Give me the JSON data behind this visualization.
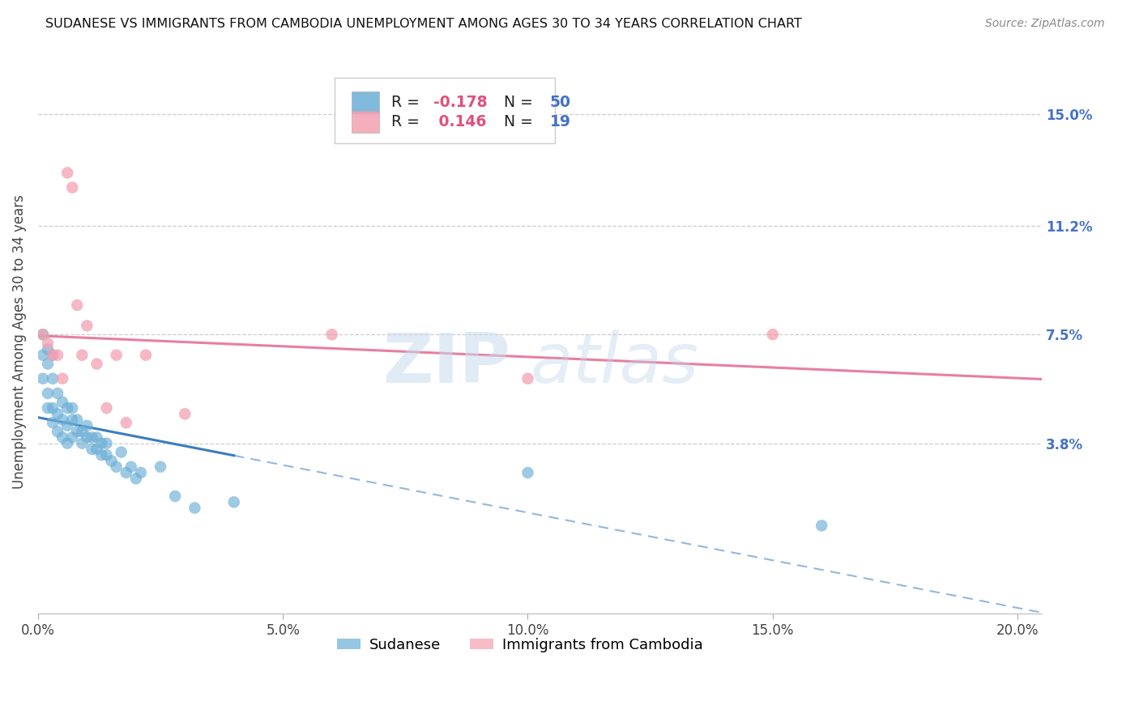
{
  "title": "SUDANESE VS IMMIGRANTS FROM CAMBODIA UNEMPLOYMENT AMONG AGES 30 TO 34 YEARS CORRELATION CHART",
  "source": "Source: ZipAtlas.com",
  "ylabel": "Unemployment Among Ages 30 to 34 years",
  "xlabel_ticks": [
    "0.0%",
    "5.0%",
    "10.0%",
    "15.0%",
    "20.0%"
  ],
  "xlabel_vals": [
    0.0,
    0.05,
    0.1,
    0.15,
    0.2
  ],
  "ylabel_ticks_labels": [
    "15.0%",
    "11.2%",
    "7.5%",
    "3.8%"
  ],
  "ylabel_ticks_vals": [
    0.15,
    0.112,
    0.075,
    0.038
  ],
  "xlim": [
    0.0,
    0.205
  ],
  "ylim": [
    -0.02,
    0.165
  ],
  "sudanese_R": -0.178,
  "sudanese_N": 50,
  "cambodia_R": 0.146,
  "cambodia_N": 19,
  "sudanese_color": "#6aaed6",
  "cambodia_color": "#f4a0b0",
  "sudanese_line_color": "#3a7dbf",
  "cambodia_line_color": "#e87fa0",
  "sudanese_x": [
    0.001,
    0.001,
    0.001,
    0.002,
    0.002,
    0.002,
    0.002,
    0.003,
    0.003,
    0.003,
    0.003,
    0.004,
    0.004,
    0.004,
    0.005,
    0.005,
    0.005,
    0.006,
    0.006,
    0.006,
    0.007,
    0.007,
    0.007,
    0.008,
    0.008,
    0.009,
    0.009,
    0.01,
    0.01,
    0.011,
    0.011,
    0.012,
    0.012,
    0.013,
    0.013,
    0.014,
    0.014,
    0.015,
    0.016,
    0.017,
    0.018,
    0.019,
    0.02,
    0.021,
    0.025,
    0.028,
    0.032,
    0.04,
    0.1,
    0.16
  ],
  "sudanese_y": [
    0.075,
    0.068,
    0.06,
    0.07,
    0.065,
    0.055,
    0.05,
    0.068,
    0.06,
    0.05,
    0.045,
    0.055,
    0.048,
    0.042,
    0.052,
    0.046,
    0.04,
    0.05,
    0.044,
    0.038,
    0.05,
    0.046,
    0.04,
    0.046,
    0.042,
    0.042,
    0.038,
    0.044,
    0.04,
    0.04,
    0.036,
    0.04,
    0.036,
    0.038,
    0.034,
    0.038,
    0.034,
    0.032,
    0.03,
    0.035,
    0.028,
    0.03,
    0.026,
    0.028,
    0.03,
    0.02,
    0.016,
    0.018,
    0.028,
    0.01
  ],
  "cambodia_x": [
    0.001,
    0.002,
    0.003,
    0.004,
    0.005,
    0.006,
    0.007,
    0.008,
    0.009,
    0.01,
    0.012,
    0.014,
    0.016,
    0.018,
    0.022,
    0.03,
    0.06,
    0.1,
    0.15
  ],
  "cambodia_y": [
    0.075,
    0.072,
    0.068,
    0.068,
    0.06,
    0.13,
    0.125,
    0.085,
    0.068,
    0.078,
    0.065,
    0.05,
    0.068,
    0.045,
    0.068,
    0.048,
    0.075,
    0.06,
    0.075
  ],
  "sudanese_trend_x_start": 0.0,
  "sudanese_trend_x_solid_end": 0.04,
  "sudanese_trend_x_end": 0.205,
  "cambodia_trend_x_start": 0.0,
  "cambodia_trend_x_end": 0.205
}
